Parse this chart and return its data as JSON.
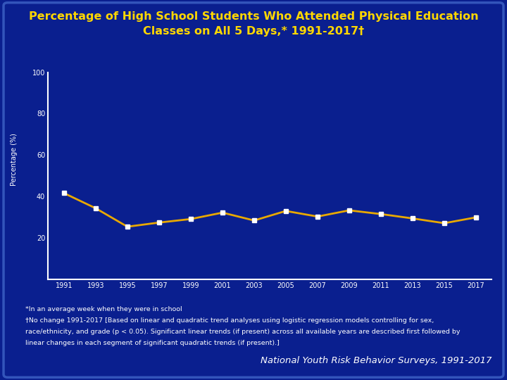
{
  "title_line1": "Percentage of High School Students Who Attended Physical Education",
  "title_line2": "Classes on All 5 Days,* 1991-2017†",
  "years": [
    1991,
    1993,
    1995,
    1997,
    1999,
    2001,
    2003,
    2005,
    2007,
    2009,
    2011,
    2013,
    2015,
    2017
  ],
  "values": [
    41.6,
    34.3,
    25.4,
    27.4,
    29.1,
    32.2,
    28.4,
    33.0,
    30.3,
    33.3,
    31.5,
    29.4,
    27.1,
    29.9
  ],
  "ylabel": "Percentage (%)",
  "ylim": [
    0,
    100
  ],
  "yticks": [
    20,
    40,
    60,
    80,
    100
  ],
  "line_color": "#E8A800",
  "marker_color": "#FFFFFF",
  "marker_style": "s",
  "marker_size": 5,
  "background_color": "#0A1F8F",
  "axis_color": "#FFFFFF",
  "text_color": "#FFFFFF",
  "title_color": "#FFD700",
  "footnote_color": "#FFFFFF",
  "footnote1": "*In an average week when they were in school",
  "footnote2": "†No change 1991-2017 [Based on linear and quadratic trend analyses using logistic regression models controlling for sex,",
  "footnote3": "race/ethnicity, and grade (p < 0.05). Significant linear trends (if present) across all available years are described first followed by",
  "footnote4": "linear changes in each segment of significant quadratic trends (if present).]",
  "source_text": "National Youth Risk Behavior Surveys, 1991-2017",
  "title_fontsize": 11.5,
  "tick_fontsize": 7,
  "footnote_fontsize": 6.8,
  "source_fontsize": 9.5
}
